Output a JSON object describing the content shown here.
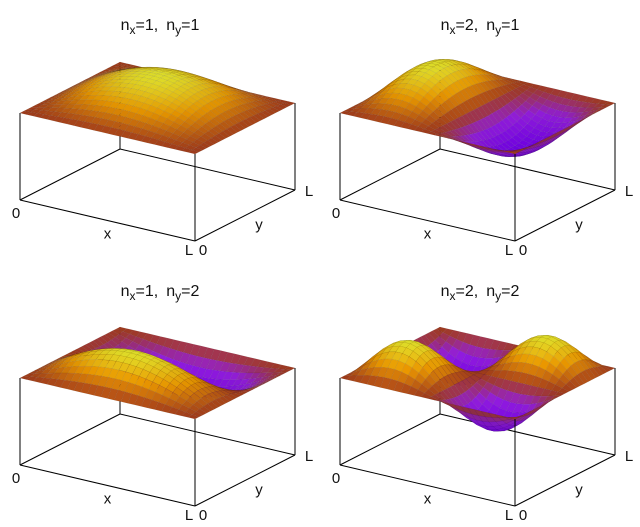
{
  "panels": [
    {
      "nx": 1,
      "ny": 1,
      "title": {
        "nx_label": "n",
        "nx_sub": "x",
        "nx_value": "=1,",
        "ny_label": "n",
        "ny_sub": "y",
        "ny_value": "=1"
      },
      "axes": {
        "origin": "0",
        "x_label": "x",
        "x_end": "L",
        "y_start": "0",
        "y_label": "y",
        "y_end": "L"
      }
    },
    {
      "nx": 2,
      "ny": 1,
      "title": {
        "nx_label": "n",
        "nx_sub": "x",
        "nx_value": "=2,",
        "ny_label": "n",
        "ny_sub": "y",
        "ny_value": "=1"
      },
      "axes": {
        "origin": "0",
        "x_label": "x",
        "x_end": "L",
        "y_start": "0",
        "y_label": "y",
        "y_end": "L"
      }
    },
    {
      "nx": 1,
      "ny": 2,
      "title": {
        "nx_label": "n",
        "nx_sub": "x",
        "nx_value": "=1,",
        "ny_label": "n",
        "ny_sub": "y",
        "ny_value": "=2"
      },
      "axes": {
        "origin": "0",
        "x_label": "x",
        "x_end": "L",
        "y_start": "0",
        "y_label": "y",
        "y_end": "L"
      }
    },
    {
      "nx": 2,
      "ny": 2,
      "title": {
        "nx_label": "n",
        "nx_sub": "x",
        "nx_value": "=2,",
        "ny_label": "n",
        "ny_sub": "y",
        "ny_value": "=2"
      },
      "axes": {
        "origin": "0",
        "x_label": "x",
        "x_end": "L",
        "y_start": "0",
        "y_label": "y",
        "y_end": "L"
      }
    }
  ],
  "colormap": {
    "high": "#ffff30",
    "upper": "#ffa500",
    "mid": "#b5431f",
    "lower": "#a020f0",
    "low": "#7c00ff"
  }
}
